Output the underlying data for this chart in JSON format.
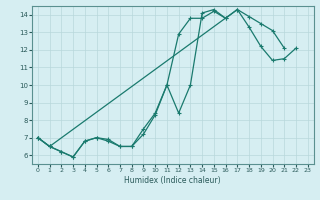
{
  "xlabel": "Humidex (Indice chaleur)",
  "bg_color": "#d6eef2",
  "grid_color": "#b8d8dc",
  "line_color": "#1a7a6e",
  "xlim": [
    -0.5,
    23.5
  ],
  "ylim": [
    5.5,
    14.5
  ],
  "xticks": [
    0,
    1,
    2,
    3,
    4,
    5,
    6,
    7,
    8,
    9,
    10,
    11,
    12,
    13,
    14,
    15,
    16,
    17,
    18,
    19,
    20,
    21,
    22,
    23
  ],
  "yticks": [
    6,
    7,
    8,
    9,
    10,
    11,
    12,
    13,
    14
  ],
  "line1_y": [
    7.0,
    6.5,
    6.2,
    5.9,
    6.8,
    7.0,
    6.9,
    6.5,
    6.5,
    7.2,
    8.3,
    10.0,
    8.4,
    10.0,
    14.1,
    14.3,
    13.8,
    null,
    null,
    null,
    null,
    null,
    null,
    null
  ],
  "line2_y": [
    7.0,
    6.5,
    6.2,
    5.9,
    6.8,
    7.0,
    6.8,
    6.5,
    6.5,
    7.5,
    8.4,
    10.0,
    12.9,
    13.8,
    13.8,
    14.2,
    13.8,
    14.3,
    13.9,
    13.5,
    13.1,
    12.1,
    null,
    null
  ],
  "line3_y": [
    7.0,
    6.5,
    null,
    null,
    null,
    null,
    null,
    null,
    null,
    null,
    null,
    null,
    null,
    null,
    null,
    null,
    null,
    14.3,
    13.3,
    12.2,
    11.4,
    11.5,
    12.1,
    null
  ]
}
